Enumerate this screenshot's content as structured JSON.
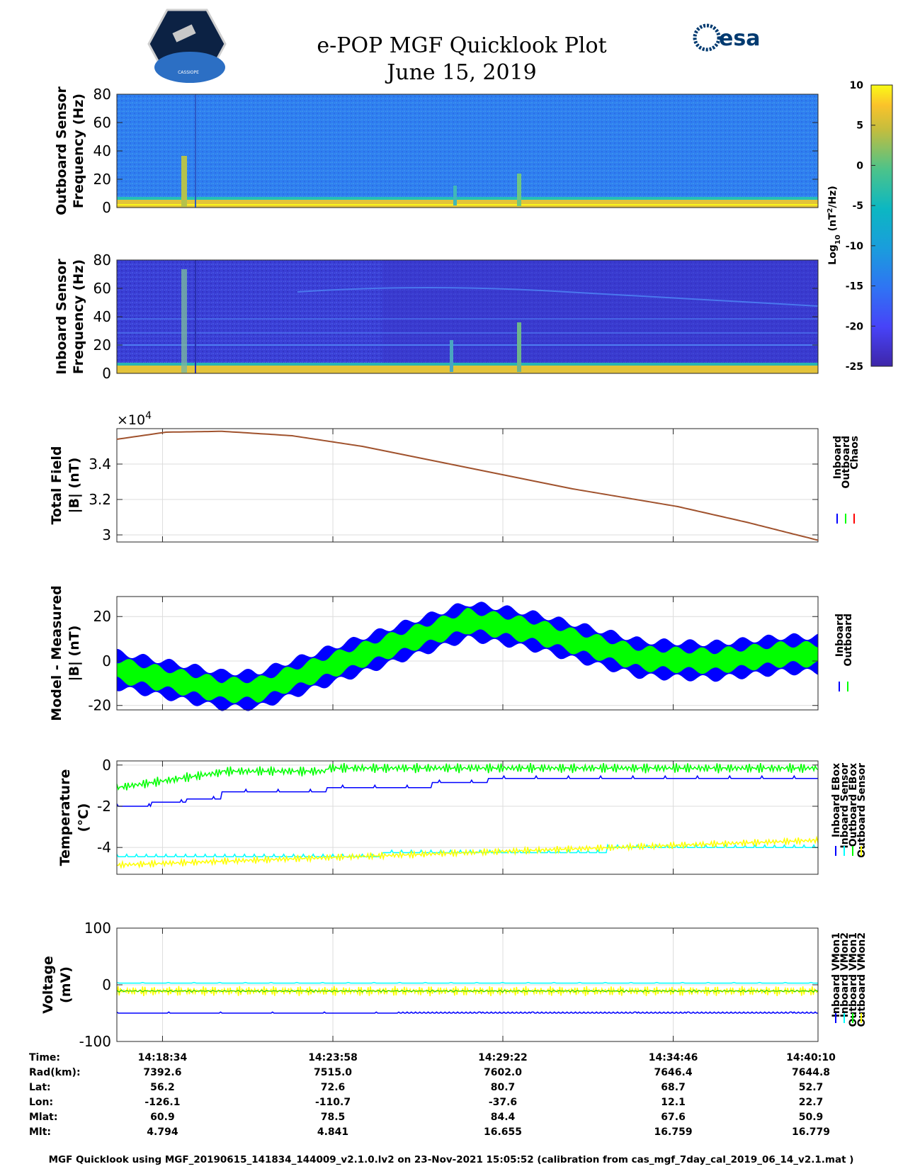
{
  "header": {
    "title": "e-POP MGF Quicklook Plot",
    "date": "June 15, 2019",
    "logo_left_text": "CASSIOPE",
    "logo_right_text": "esa"
  },
  "colorbar": {
    "label_main": "Log",
    "label_sub": "10",
    "label_unit": " (nT",
    "label_unit_sup": "2",
    "label_unit_end": "/Hz)",
    "ticks": [
      10,
      5,
      0,
      -5,
      -10,
      -15,
      -20,
      -25
    ],
    "range": [
      -25,
      10
    ]
  },
  "chart_data": [
    {
      "type": "heatmap",
      "ylabel_line1": "Outboard Sensor",
      "ylabel_line2": "Frequency (Hz)",
      "ylim": [
        0,
        80
      ],
      "yticks": [
        80,
        60,
        40,
        20,
        0
      ]
    },
    {
      "type": "heatmap",
      "ylabel_line1": "Inboard Sensor",
      "ylabel_line2": "Frequency (Hz)",
      "ylim": [
        0,
        80
      ],
      "yticks": [
        80,
        60,
        40,
        20,
        0
      ]
    },
    {
      "type": "line",
      "ylabel_line1": "Total Field",
      "ylabel_line2": "|B| (nT)",
      "exponent_label": "×10",
      "exponent_sup": "4",
      "ylim": [
        2.96,
        3.6
      ],
      "yticks": [
        3.4,
        3.2,
        3.0
      ],
      "ytick_labels": [
        "3.4",
        "3.2",
        "3"
      ],
      "legend": [
        "Inboard",
        "Outboard",
        "Chaos"
      ],
      "legend_colors": [
        "#0000ff",
        "#00ff00",
        "#ff0000"
      ],
      "series_points": [
        [
          0,
          3.54
        ],
        [
          0.07,
          3.58
        ],
        [
          0.15,
          3.585
        ],
        [
          0.25,
          3.56
        ],
        [
          0.35,
          3.5
        ],
        [
          0.5,
          3.38
        ],
        [
          0.65,
          3.26
        ],
        [
          0.8,
          3.16
        ],
        [
          0.9,
          3.07
        ],
        [
          1.0,
          2.97
        ]
      ]
    },
    {
      "type": "line",
      "ylabel_line1": "Model - Measured",
      "ylabel_line2": "|B| (nT)",
      "ylim": [
        -22,
        29
      ],
      "yticks": [
        20,
        0,
        -20
      ],
      "legend": [
        "Inboard",
        "Outboard"
      ],
      "legend_colors": [
        "#0000ff",
        "#00ff00"
      ],
      "center_points": [
        [
          0,
          -4
        ],
        [
          0.15,
          -13
        ],
        [
          0.2,
          -13
        ],
        [
          0.4,
          8
        ],
        [
          0.5,
          18
        ],
        [
          0.55,
          16
        ],
        [
          0.6,
          13
        ],
        [
          0.75,
          1
        ],
        [
          0.85,
          0
        ],
        [
          0.95,
          3
        ],
        [
          1.0,
          3
        ]
      ]
    },
    {
      "type": "line",
      "ylabel_line1": "Temperature",
      "ylabel_line2": "(°C)",
      "ylim": [
        -5.3,
        0.2
      ],
      "yticks": [
        0,
        -2,
        -4
      ],
      "legend": [
        "Inboard EBox",
        "Inboard Sensor",
        "Outboard EBox",
        "Outboard Sensor"
      ],
      "legend_colors": [
        "#0000ff",
        "#00ffff",
        "#00ff00",
        "#ffff00"
      ]
    },
    {
      "type": "line",
      "ylabel_line1": "Voltage",
      "ylabel_line2": "(mV)",
      "ylim": [
        -100,
        100
      ],
      "yticks": [
        100,
        0,
        -100
      ],
      "legend": [
        "Inboard VMon1",
        "Inboard VMon2",
        "Outboard VMon1",
        "Outboard VMon2"
      ],
      "legend_colors": [
        "#0000ff",
        "#00ffff",
        "#00ff00",
        "#ffff00"
      ]
    }
  ],
  "ephemeris": {
    "row_labels": [
      "Time:",
      "Rad(km):",
      "Lat:",
      "Lon:",
      "Mlat:",
      "Mlt:"
    ],
    "columns": [
      [
        "14:18:34",
        "7392.6",
        "56.2",
        "-126.1",
        "60.9",
        "4.794"
      ],
      [
        "14:23:58",
        "7515.0",
        "72.6",
        "-110.7",
        "78.5",
        "4.841"
      ],
      [
        "14:29:22",
        "7602.0",
        "80.7",
        "-37.6",
        "84.4",
        "16.655"
      ],
      [
        "14:34:46",
        "7646.4",
        "68.7",
        "12.1",
        "67.6",
        "16.759"
      ],
      [
        "14:40:10",
        "7644.8",
        "52.7",
        "22.7",
        "50.9",
        "16.779"
      ]
    ]
  },
  "footer": "MGF Quicklook using MGF_20190615_141834_144009_v2.1.0.lv2 on 23-Nov-2021 15:05:52 (calibration from cas_mgf_7day_cal_2019_06_14_v2.1.mat )"
}
